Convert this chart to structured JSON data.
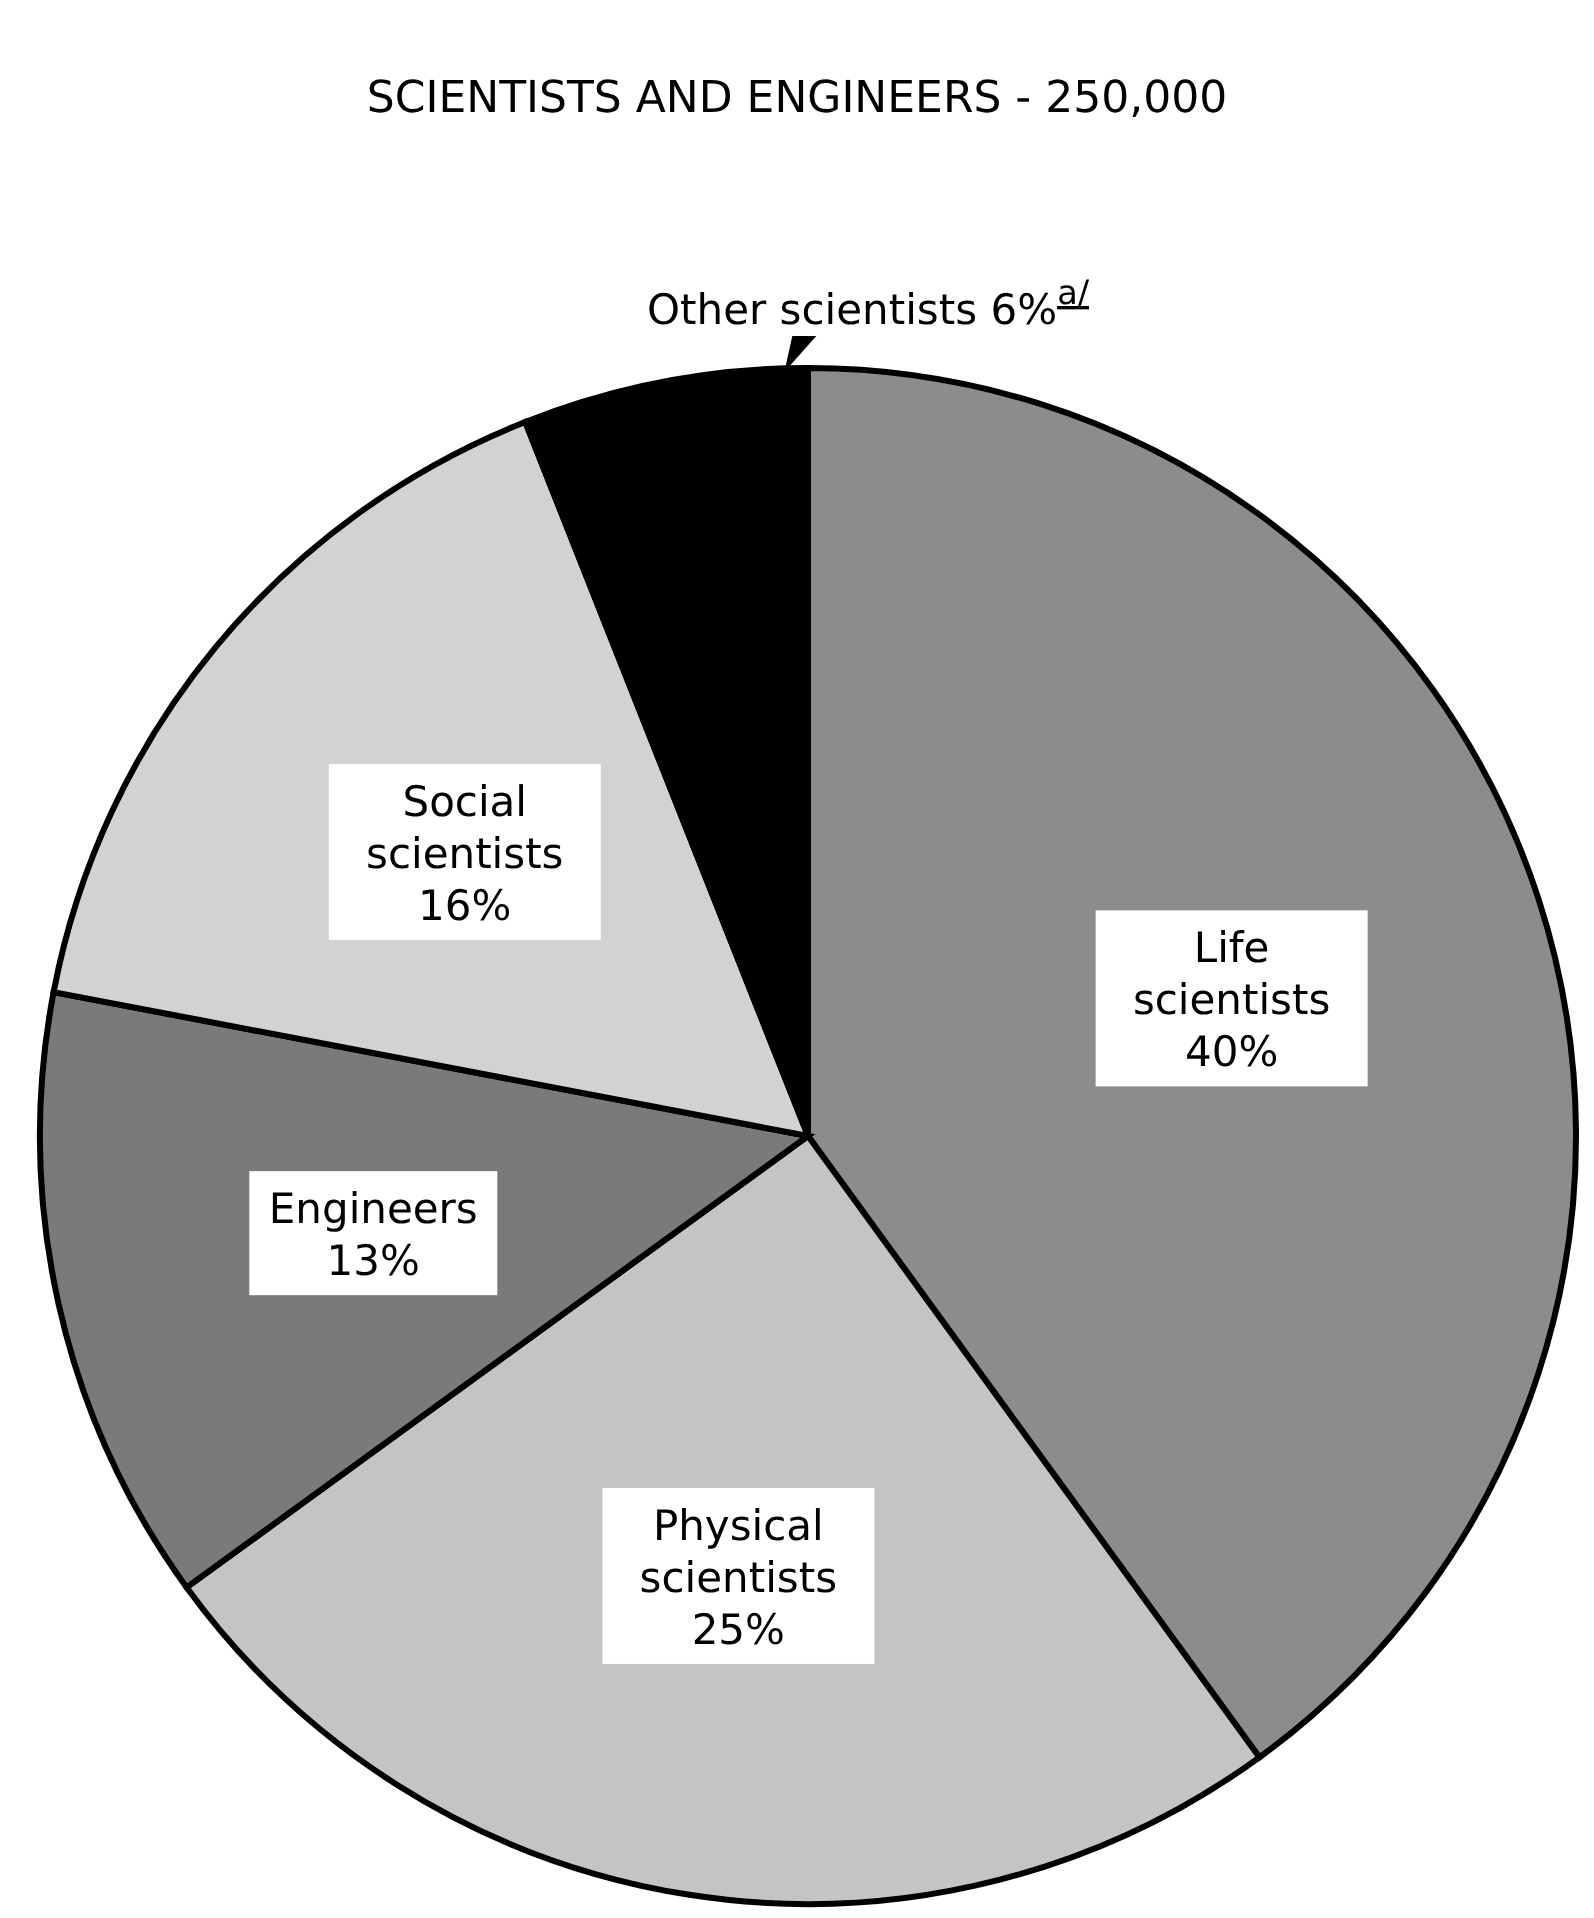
{
  "chart_data": {
    "type": "pie",
    "title": "SCIENTISTS AND ENGINEERS - 250,000",
    "categories": [
      "Life scientists",
      "Physical scientists",
      "Engineers",
      "Social scientists",
      "Other scientists"
    ],
    "values": [
      40,
      25,
      13,
      16,
      6
    ],
    "value_labels": [
      "40%",
      "25%",
      "13%",
      "16%",
      "6%$^{a/}$"
    ],
    "colors": [
      "#8c8c8c",
      "#c4c4c4",
      "#7a7a7a",
      "#d2d2d2",
      "#000000"
    ]
  }
}
